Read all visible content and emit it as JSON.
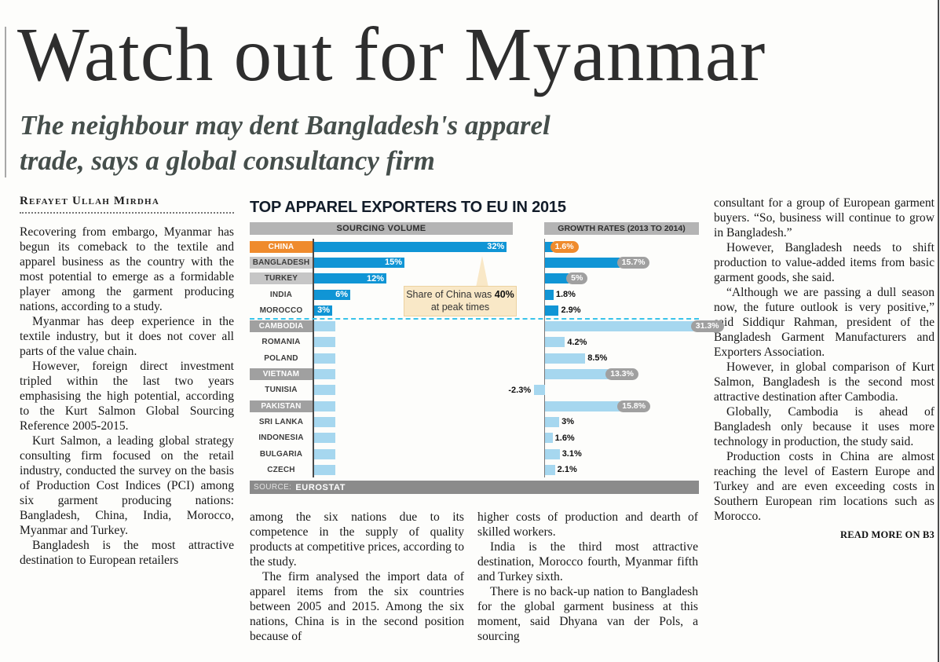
{
  "page": {
    "headline": "Watch out for Myanmar",
    "subtitle_lines": [
      "The neighbour may dent Bangladesh's apparel",
      "trade, says a global consultancy firm"
    ],
    "byline": "Refayet Ullah Mirdha",
    "read_more": "READ MORE ON B3"
  },
  "columns": {
    "col1": [
      "Recovering from embargo, Myanmar has begun its comeback to the textile and apparel business as the country with the most potential to emerge as a formidable player among the garment producing nations, according to a study.",
      "Myanmar has deep experience in the textile industry, but it does not cover all parts of the value chain.",
      "However, foreign direct investment tripled within the last two years emphasising the high potential, according to the Kurt Salmon Global Sourcing Reference 2005-2015.",
      "Kurt Salmon, a leading global strategy consulting firm focused on the retail industry, conducted the survey on the basis of Production Cost Indices (PCI) among six garment producing nations: Bangladesh, China, India, Morocco, Myanmar and Turkey.",
      "Bangladesh is the most attractive destination to European retailers"
    ],
    "col2": [
      "among the six nations due to its competence in the supply of quality products at competitive prices, according to the study.",
      "The firm analysed the import data of apparel items from the six countries between 2005 and 2015. Among the six nations, China is in the second position because of"
    ],
    "col3": [
      "higher costs of production and dearth of skilled workers.",
      "India is the third most attractive destination, Morocco fourth, Myanmar fifth and Turkey sixth.",
      "There is no back-up nation to Bangladesh for the global garment business at this moment, said Dhyana van der Pols, a sourcing"
    ],
    "col4": [
      "consultant for a group of European garment buyers. “So, business will continue to grow in Bangladesh.”",
      "However, Bangladesh needs to shift production to value-added items from basic garment goods, she said.",
      "“Although we are passing a dull season now, the future outlook is very positive,” said Siddiqur Rahman, president of the Bangladesh Garment Manufacturers and Exporters Association.",
      "However, in global comparison of Kurt Salmon, Bangladesh is the second most attractive destination after Cambodia.",
      "Globally, Cambodia is ahead of Bangladesh only because it uses more technology in production, the study said.",
      "Production costs in China are almost reaching the level of Eastern Europe and Turkey and are even exceeding costs in Southern European rim locations such as Morocco."
    ]
  },
  "chart_data": {
    "type": "bar",
    "title": "TOP APPAREL EXPORTERS TO EU IN 2015",
    "panel_headers": [
      "SOURCING VOLUME",
      "GROWTH RATES (2013 TO 2014)"
    ],
    "source_prefix": "SOURCE:",
    "source": "EUROSTAT",
    "categories": [
      "CHINA",
      "BANGLADESH",
      "TURKEY",
      "INDIA",
      "MOROCCO",
      "CAMBODIA",
      "ROMANIA",
      "POLAND",
      "VIETNAM",
      "TUNISIA",
      "PAKISTAN",
      "SRI LANKA",
      "INDONESIA",
      "BULGARIA",
      "CZECH"
    ],
    "series": [
      {
        "name": "Sourcing volume share (%)",
        "values": [
          32,
          15,
          12,
          6,
          3,
          3.5,
          3.5,
          3.5,
          3.5,
          3.5,
          3.5,
          3.5,
          3.5,
          3.5,
          3.5
        ]
      },
      {
        "name": "Growth rate 2013 to 2014 (%)",
        "values": [
          1.6,
          15.7,
          5,
          1.8,
          2.9,
          31.3,
          4.2,
          8.5,
          13.3,
          -2.3,
          15.8,
          3,
          1.6,
          3.1,
          2.1
        ]
      }
    ],
    "volume_labels": [
      "32%",
      "15%",
      "12%",
      "6%",
      "3%",
      "",
      "",
      "",
      "",
      "",
      "",
      "",
      "",
      "",
      ""
    ],
    "growth_labels": [
      "1.6%",
      "15.7%",
      "5%",
      "1.8%",
      "2.9%",
      "31.3%",
      "4.2%",
      "8.5%",
      "13.3%",
      "-2.3%",
      "15.8%",
      "3%",
      "1.6%",
      "3.1%",
      "2.1%"
    ],
    "label_styles": [
      "orange",
      "gray-light",
      "gray-light",
      "plain",
      "plain",
      "gray-dark",
      "plain",
      "plain",
      "gray-dark",
      "plain",
      "gray-dark",
      "plain",
      "plain",
      "plain",
      "plain"
    ],
    "growth_badges": [
      "orange",
      "gray",
      "gray",
      null,
      null,
      "gray",
      null,
      null,
      "gray",
      null,
      "gray",
      null,
      null,
      null,
      null
    ],
    "top_group_size": 5,
    "divider_after_index": 4,
    "volume_axis_max": 33,
    "growth_axis_max": 32.5,
    "annotation": {
      "pre": "Share of China was ",
      "bold": "40%",
      "post": " at peak times"
    },
    "colors": {
      "bar_dark": "#1095d5",
      "bar_light": "#a6d7ef",
      "accent_orange": "#ef8b2d",
      "badge_gray": "#a0a0a0",
      "header_gray": "#b4b4b4",
      "divider_cyan": "#38c3ea",
      "callout_bg": "#f9e8c7",
      "source_bar": "#8b8b8b"
    }
  }
}
